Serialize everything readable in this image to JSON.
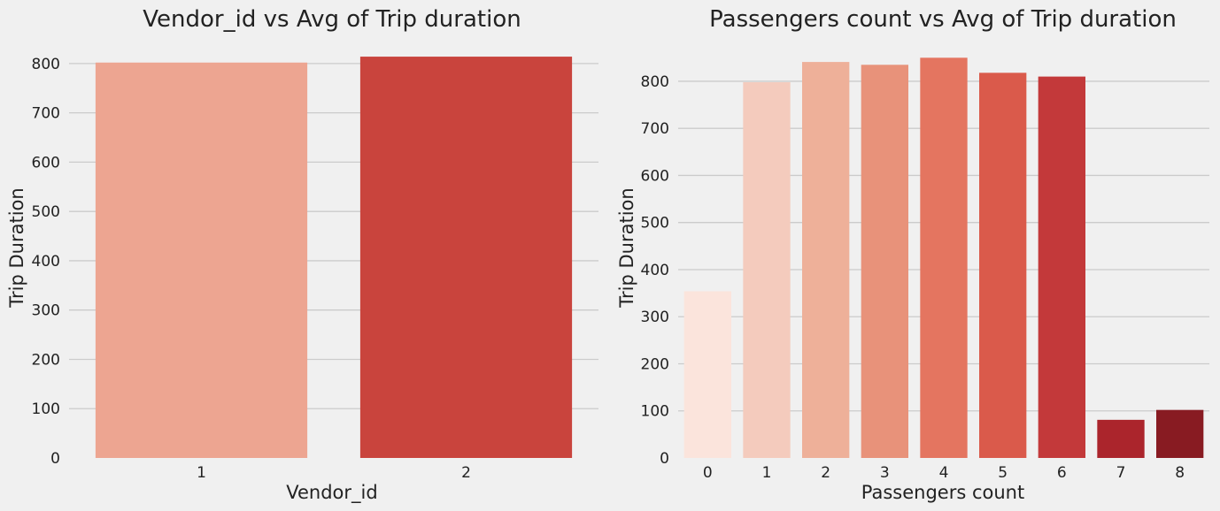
{
  "chart_data": [
    {
      "type": "bar",
      "title": "Vendor_id vs Avg of Trip duration",
      "xlabel": "Vendor_id",
      "ylabel": "Trip Duration",
      "categories": [
        "1",
        "2"
      ],
      "values": [
        802,
        814
      ],
      "colors": [
        "#eda591",
        "#c9443d"
      ],
      "yticks": [
        0,
        100,
        200,
        300,
        400,
        500,
        600,
        700,
        800
      ],
      "ylim": [
        0,
        850
      ],
      "grid": "horizontal",
      "legend": "none"
    },
    {
      "type": "bar",
      "title": "Passengers count vs Avg of Trip duration",
      "xlabel": "Passengers count",
      "ylabel": "Trip Duration",
      "categories": [
        "0",
        "1",
        "2",
        "3",
        "4",
        "5",
        "6",
        "7",
        "8"
      ],
      "values": [
        354,
        798,
        841,
        835,
        850,
        818,
        810,
        81,
        102
      ],
      "colors": [
        "#fbe4dc",
        "#f4cbbd",
        "#eeb099",
        "#e8927a",
        "#e47560",
        "#da5a4b",
        "#c3393a",
        "#ab252c",
        "#881b22"
      ],
      "yticks": [
        0,
        100,
        200,
        300,
        400,
        500,
        600,
        700,
        800
      ],
      "ylim": [
        0,
        890
      ],
      "grid": "horizontal",
      "legend": "none"
    }
  ]
}
